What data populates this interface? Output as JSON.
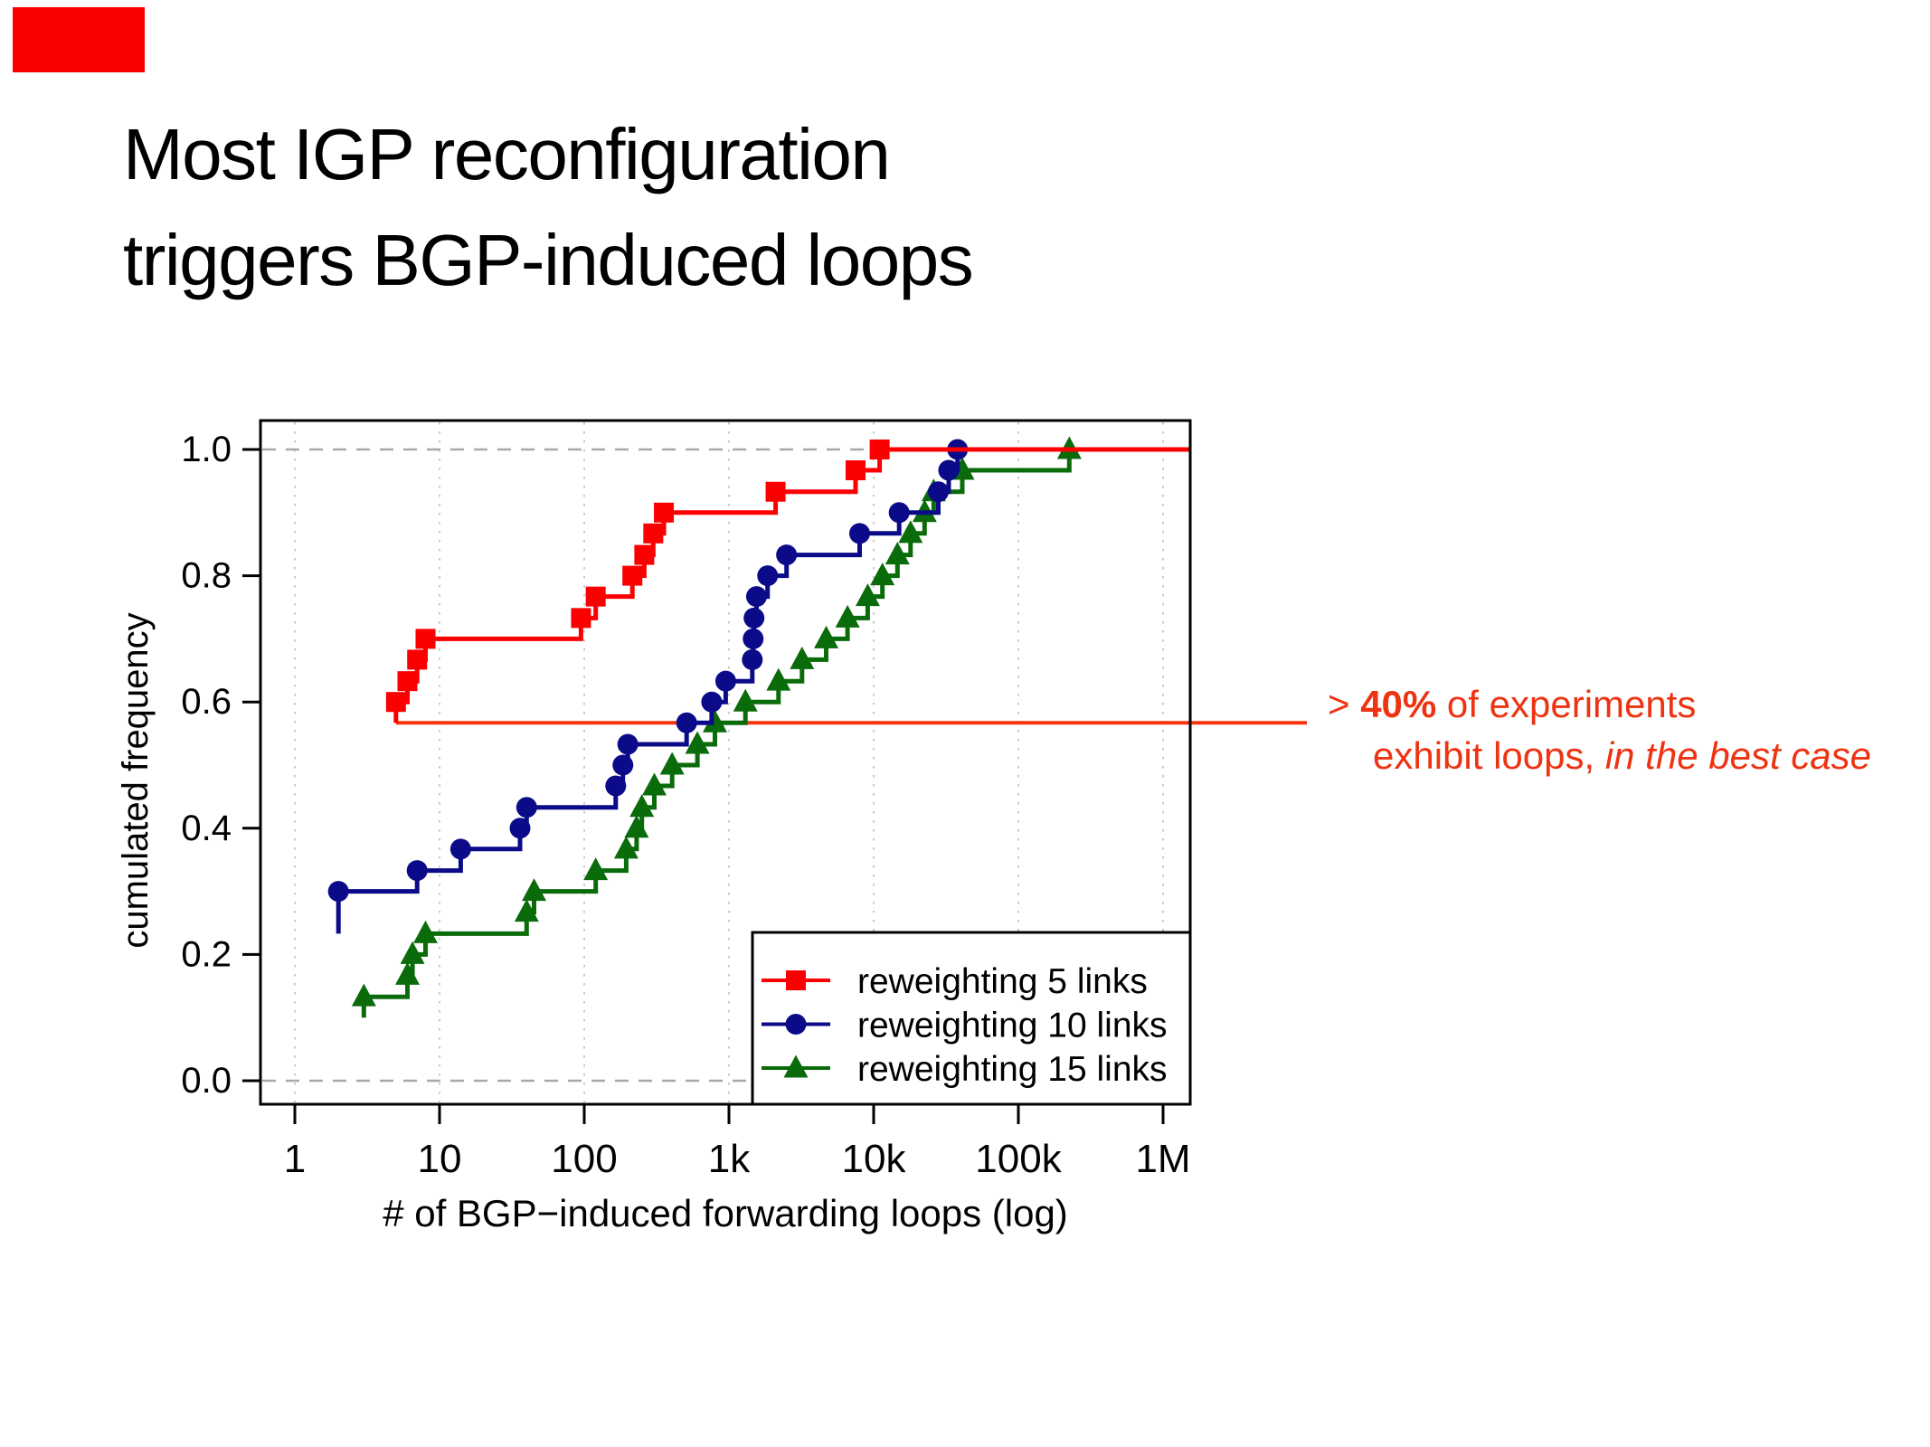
{
  "slide": {
    "title_lines": [
      "Most IGP reconfiguration",
      "triggers BGP-induced loops"
    ],
    "background_color": "#ffffff",
    "marker_color": "#fa0000"
  },
  "annotation": {
    "line1_prefix": "> ",
    "line1_bold": "40%",
    "line1_rest": " of experiments",
    "line2_normal": "exhibit loops, ",
    "line2_italic": "in the best case",
    "color": "#ee3312"
  },
  "chart_data": {
    "type": "line",
    "subtype": "ecdf-step-curves",
    "title": "",
    "xlabel": "# of BGP−induced forwarding loops (log)",
    "ylabel": "cumulated frequency",
    "x_scale": "log10",
    "x_ticks": [
      {
        "label": "1",
        "value": 1
      },
      {
        "label": "10",
        "value": 10
      },
      {
        "label": "100",
        "value": 100
      },
      {
        "label": "1k",
        "value": 1000
      },
      {
        "label": "10k",
        "value": 10000
      },
      {
        "label": "100k",
        "value": 100000
      },
      {
        "label": "1M",
        "value": 1000000
      }
    ],
    "y_ticks": [
      {
        "label": "0.0",
        "value": 0.0
      },
      {
        "label": "0.2",
        "value": 0.2
      },
      {
        "label": "0.4",
        "value": 0.4
      },
      {
        "label": "0.6",
        "value": 0.6
      },
      {
        "label": "0.8",
        "value": 0.8
      },
      {
        "label": "1.0",
        "value": 1.0
      }
    ],
    "ylim": [
      -0.037,
      1.046
    ],
    "xlim_log10": [
      -0.2375,
      6.19
    ],
    "grid": {
      "vertical_dotted_at_decades": true,
      "vertical_grid_color": "#c9c9c9",
      "horizontal_dashed_y": [
        0.0,
        1.0
      ],
      "horizontal_grid_color": "#a8a8a8"
    },
    "reference_line": {
      "y": 0.567,
      "color": "#f5330a",
      "meaning": "fraction of loop-free experiments in best case"
    },
    "legend_position": "bottom-right",
    "axis_color": "#000000",
    "series": [
      {
        "name": "reweighting 5 links",
        "color": "#fa0000",
        "marker": "square",
        "tail_y": 0.567,
        "points": [
          [
            5,
            0.6
          ],
          [
            6,
            0.633
          ],
          [
            7,
            0.667
          ],
          [
            8,
            0.7
          ],
          [
            95,
            0.733
          ],
          [
            120,
            0.767
          ],
          [
            215,
            0.8
          ],
          [
            260,
            0.833
          ],
          [
            300,
            0.867
          ],
          [
            355,
            0.9
          ],
          [
            2100,
            0.933
          ],
          [
            7500,
            0.967
          ],
          [
            11000,
            1.0
          ]
        ]
      },
      {
        "name": "reweighting 10 links",
        "color": "#0b0b8a",
        "marker": "circle",
        "tail_y": 0.233,
        "points": [
          [
            2,
            0.3
          ],
          [
            7,
            0.333
          ],
          [
            14,
            0.367
          ],
          [
            36,
            0.4
          ],
          [
            40,
            0.433
          ],
          [
            165,
            0.467
          ],
          [
            185,
            0.5
          ],
          [
            200,
            0.533
          ],
          [
            510,
            0.567
          ],
          [
            760,
            0.6
          ],
          [
            950,
            0.633
          ],
          [
            1450,
            0.667
          ],
          [
            1470,
            0.7
          ],
          [
            1490,
            0.733
          ],
          [
            1550,
            0.767
          ],
          [
            1850,
            0.8
          ],
          [
            2500,
            0.833
          ],
          [
            8000,
            0.867
          ],
          [
            15000,
            0.9
          ],
          [
            28000,
            0.933
          ],
          [
            33000,
            0.967
          ],
          [
            38000,
            1.0
          ]
        ]
      },
      {
        "name": "reweighting 15 links",
        "color": "#0a6b0a",
        "marker": "triangle",
        "tail_y": 0.1,
        "points": [
          [
            3,
            0.133
          ],
          [
            6,
            0.167
          ],
          [
            6.5,
            0.2
          ],
          [
            8,
            0.233
          ],
          [
            40,
            0.267
          ],
          [
            45,
            0.3
          ],
          [
            120,
            0.333
          ],
          [
            195,
            0.367
          ],
          [
            230,
            0.4
          ],
          [
            250,
            0.433
          ],
          [
            305,
            0.467
          ],
          [
            405,
            0.5
          ],
          [
            605,
            0.533
          ],
          [
            800,
            0.567
          ],
          [
            1300,
            0.6
          ],
          [
            2200,
            0.633
          ],
          [
            3200,
            0.667
          ],
          [
            4700,
            0.7
          ],
          [
            6600,
            0.733
          ],
          [
            9100,
            0.767
          ],
          [
            11500,
            0.8
          ],
          [
            14600,
            0.833
          ],
          [
            18000,
            0.867
          ],
          [
            22500,
            0.9
          ],
          [
            26000,
            0.933
          ],
          [
            41000,
            0.967
          ],
          [
            225000,
            1.0
          ]
        ]
      }
    ]
  }
}
